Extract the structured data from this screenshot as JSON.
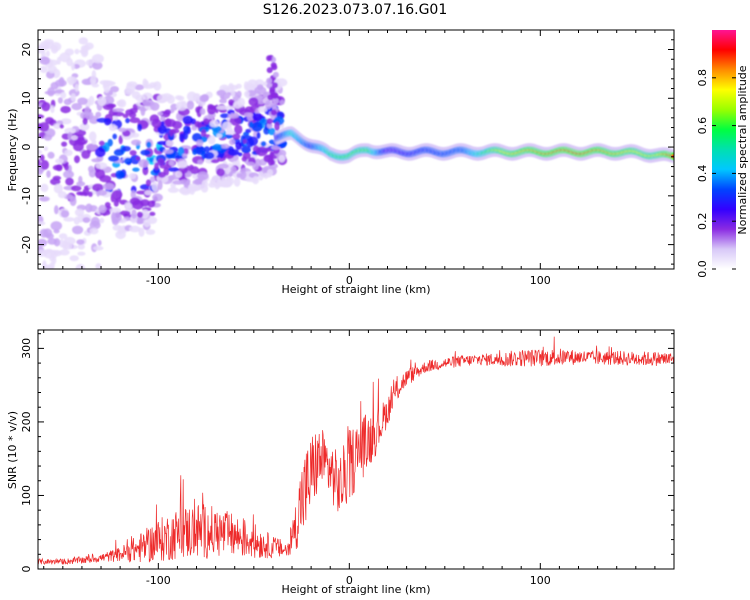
{
  "title": "S126.2023.073.07.16.G01",
  "chart_data": [
    {
      "type": "heatmap",
      "xlabel": "Height of straight line (km)",
      "ylabel": "Frequency (Hz)",
      "xlim": [
        -163,
        170
      ],
      "ylim": [
        -25,
        24
      ],
      "xticks": [
        -100,
        0,
        100
      ],
      "yticks": [
        -20,
        -10,
        0,
        10,
        20
      ],
      "grid": false,
      "colorbar": {
        "label": "Normalized spectral amplitude",
        "ticks": [
          0.0,
          0.2,
          0.4,
          0.6,
          0.8
        ],
        "range": [
          0,
          1
        ],
        "colormap": [
          "#ffffff",
          "#d8c8f8",
          "#8a2be2",
          "#3300ff",
          "#0044ff",
          "#00c8ff",
          "#00e0b0",
          "#00ff40",
          "#9aff00",
          "#ffff00",
          "#ff8c00",
          "#ff0000",
          "#ff1493"
        ]
      },
      "ridge": {
        "description_values_x": [
          -40,
          -30,
          -20,
          -10,
          0,
          10,
          20,
          40,
          60,
          80,
          100,
          120,
          140,
          160,
          168
        ],
        "frequency_hz": [
          2.0,
          2.5,
          0.5,
          -1.5,
          -1.8,
          -0.5,
          -1.0,
          -1.0,
          -1.0,
          -1.0,
          -1.0,
          -1.0,
          -1.0,
          -1.5,
          -2.0
        ],
        "amplitude": [
          0.15,
          0.5,
          0.3,
          0.55,
          0.6,
          0.6,
          0.2,
          0.3,
          0.35,
          0.75,
          0.85,
          0.9,
          0.8,
          0.7,
          0.9
        ]
      }
    },
    {
      "type": "line",
      "xlabel": "Height of straight line (km)",
      "ylabel": "SNR (10 * v/v)",
      "xlim": [
        -163,
        170
      ],
      "ylim": [
        0,
        325
      ],
      "xticks": [
        -100,
        0,
        100
      ],
      "yticks": [
        0,
        100,
        200,
        300
      ],
      "grid": false,
      "series": [
        {
          "color": "#ee2a2a",
          "x": [
            -163,
            -150,
            -140,
            -130,
            -120,
            -110,
            -100,
            -90,
            -80,
            -70,
            -60,
            -50,
            -40,
            -32,
            -28,
            -25,
            -22,
            -20,
            -18,
            -15,
            -10,
            -5,
            0,
            5,
            10,
            15,
            20,
            25,
            30,
            40,
            50,
            60,
            70,
            80,
            90,
            100,
            110,
            120,
            130,
            140,
            150,
            160,
            170
          ],
          "y": [
            10,
            10,
            12,
            15,
            20,
            28,
            38,
            48,
            52,
            50,
            45,
            38,
            30,
            25,
            60,
            95,
            110,
            130,
            140,
            150,
            135,
            110,
            140,
            160,
            175,
            190,
            215,
            245,
            260,
            275,
            280,
            283,
            285,
            285,
            287,
            287,
            288,
            288,
            287,
            287,
            286,
            286,
            285
          ],
          "noise": [
            4,
            4,
            5,
            6,
            10,
            20,
            30,
            35,
            40,
            35,
            30,
            25,
            15,
            12,
            35,
            55,
            60,
            55,
            50,
            45,
            40,
            45,
            50,
            45,
            40,
            30,
            20,
            18,
            12,
            8,
            8,
            8,
            8,
            10,
            12,
            12,
            12,
            10,
            10,
            10,
            10,
            10,
            10
          ]
        }
      ]
    }
  ]
}
